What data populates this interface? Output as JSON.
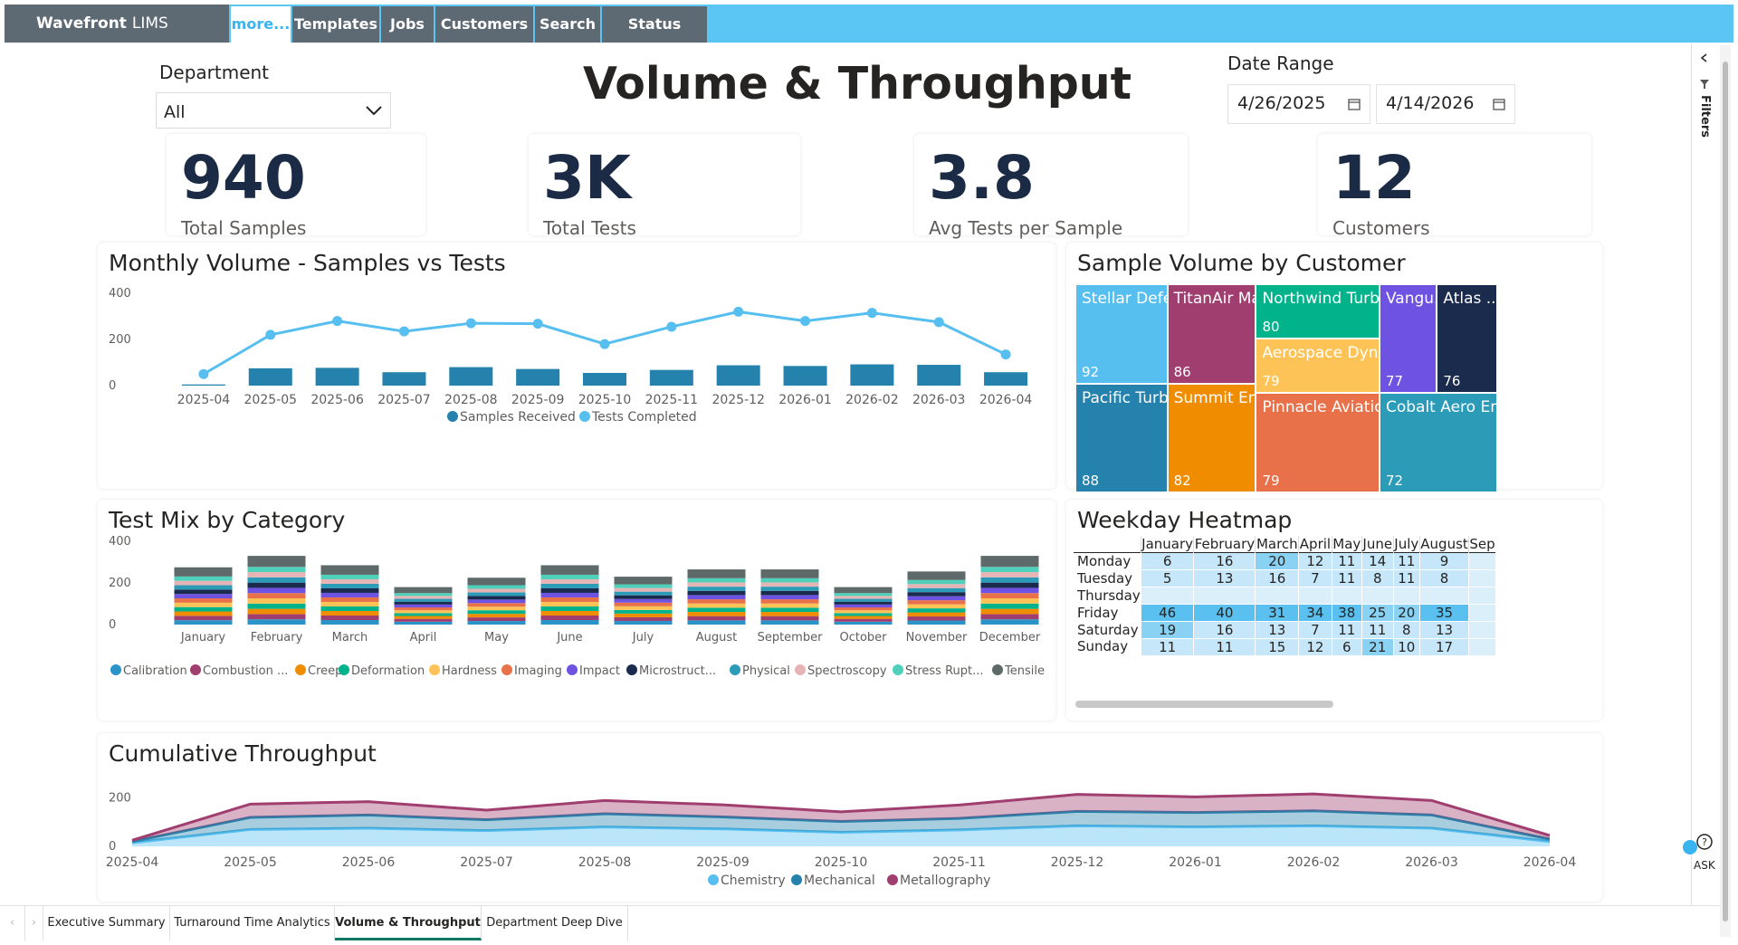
{
  "app": {
    "name": "Wavefront",
    "suffix": "LIMS"
  },
  "nav": {
    "tabs": [
      "more...",
      "Templates",
      "Jobs",
      "Customers",
      "Search",
      "Status Board"
    ],
    "active": "more..."
  },
  "filters": {
    "department_label": "Department",
    "department_value": "All",
    "date_label": "Date Range",
    "date_from": "4/26/2025",
    "date_to": "4/14/2026",
    "pane_label": "Filters"
  },
  "title": "Volume & Throughput",
  "kpis": [
    {
      "value": "940",
      "label": "Total Samples"
    },
    {
      "value": "3K",
      "label": "Total Tests"
    },
    {
      "value": "3.8",
      "label": "Avg Tests per Sample"
    },
    {
      "value": "12",
      "label": "Customers"
    }
  ],
  "colors": {
    "nav": "#5bc6f4",
    "navtab": "#5e6a73",
    "samples": "#2482ad",
    "tests": "#56bff0",
    "active_tab_underline": "#117865"
  },
  "monthly": {
    "title": "Monthly Volume - Samples vs Tests",
    "chart_data": {
      "type": "bar",
      "categories": [
        "2025-04",
        "2025-05",
        "2025-06",
        "2025-07",
        "2025-08",
        "2025-09",
        "2025-10",
        "2025-11",
        "2025-12",
        "2026-01",
        "2026-02",
        "2026-03",
        "2026-04"
      ],
      "series": [
        {
          "name": "Samples Received",
          "type": "bar",
          "values": [
            5,
            75,
            77,
            58,
            80,
            72,
            55,
            68,
            88,
            85,
            92,
            90,
            58
          ]
        },
        {
          "name": "Tests Completed",
          "type": "line",
          "values": [
            50,
            220,
            280,
            235,
            270,
            268,
            180,
            255,
            320,
            280,
            315,
            275,
            135
          ]
        }
      ],
      "y_ticks": [
        0,
        200,
        400
      ],
      "ylim": [
        0,
        400
      ]
    }
  },
  "treemap": {
    "title": "Sample Volume by Customer",
    "chart_data": {
      "type": "treemap",
      "items": [
        {
          "name": "Stellar Defen...",
          "value": 92,
          "color": "#56bff0"
        },
        {
          "name": "Pacific Turbi...",
          "value": 88,
          "color": "#2482ad"
        },
        {
          "name": "TitanAir Ma...",
          "value": 86,
          "color": "#a03e6f"
        },
        {
          "name": "Summit En...",
          "value": 82,
          "color": "#f08c00"
        },
        {
          "name": "Northwind Turbin...",
          "value": 80,
          "color": "#00b38a"
        },
        {
          "name": "Aerospace Dynam...",
          "value": 79,
          "color": "#fec356"
        },
        {
          "name": "Pinnacle Aviation",
          "value": 79,
          "color": "#e8714a"
        },
        {
          "name": "Vangu...",
          "value": 77,
          "color": "#6e53e3"
        },
        {
          "name": "Atlas ...",
          "value": 76,
          "color": "#1b2b4d"
        },
        {
          "name": "Cobalt Aero Engi...",
          "value": 72,
          "color": "#2b9bb8"
        }
      ]
    }
  },
  "testmix": {
    "title": "Test Mix by Category",
    "chart_data": {
      "type": "bar",
      "stacked": true,
      "categories": [
        "January",
        "February",
        "March",
        "April",
        "May",
        "June",
        "July",
        "August",
        "September",
        "October",
        "November",
        "December"
      ],
      "totals": [
        275,
        330,
        285,
        180,
        225,
        285,
        230,
        265,
        265,
        180,
        255,
        330
      ],
      "y_ticks": [
        0,
        200,
        400
      ],
      "ylim": [
        0,
        400
      ],
      "series": [
        {
          "name": "Calibration",
          "color": "#2a93c8"
        },
        {
          "name": "Combustion ...",
          "color": "#a03e6f"
        },
        {
          "name": "Creep",
          "color": "#f08c00"
        },
        {
          "name": "Deformation",
          "color": "#00b38a"
        },
        {
          "name": "Hardness",
          "color": "#fec356"
        },
        {
          "name": "Imaging",
          "color": "#e8714a"
        },
        {
          "name": "Impact",
          "color": "#6e53e3"
        },
        {
          "name": "Microstruct...",
          "color": "#1b2b4d"
        },
        {
          "name": "Physical",
          "color": "#2b9bb8"
        },
        {
          "name": "Spectroscopy",
          "color": "#e6b4b4"
        },
        {
          "name": "Stress Rupt...",
          "color": "#4fd0bb"
        },
        {
          "name": "Tensile",
          "color": "#5e6a69"
        }
      ]
    }
  },
  "heatmap": {
    "title": "Weekday Heatmap",
    "columns": [
      "January",
      "February",
      "March",
      "April",
      "May",
      "June",
      "July",
      "August",
      "Sep"
    ],
    "rows": [
      {
        "day": "Monday",
        "values": [
          "6",
          "16",
          "20",
          "12",
          "11",
          "14",
          "11",
          "9",
          ""
        ]
      },
      {
        "day": "Tuesday",
        "values": [
          "5",
          "13",
          "16",
          "7",
          "11",
          "8",
          "11",
          "8",
          ""
        ]
      },
      {
        "day": "Thursday",
        "values": [
          "",
          "",
          "",
          "",
          "",
          "",
          "",
          "",
          ""
        ]
      },
      {
        "day": "Friday",
        "values": [
          "46",
          "40",
          "31",
          "34",
          "38",
          "25",
          "20",
          "35",
          ""
        ]
      },
      {
        "day": "Saturday",
        "values": [
          "19",
          "16",
          "13",
          "7",
          "11",
          "11",
          "8",
          "13",
          ""
        ]
      },
      {
        "day": "Sunday",
        "values": [
          "11",
          "11",
          "15",
          "12",
          "6",
          "21",
          "10",
          "17",
          ""
        ]
      }
    ]
  },
  "cumulative": {
    "title": "Cumulative Throughput",
    "chart_data": {
      "type": "area",
      "stacked": true,
      "categories": [
        "2025-04",
        "2025-05",
        "2025-06",
        "2025-07",
        "2025-08",
        "2025-09",
        "2025-10",
        "2025-11",
        "2025-12",
        "2026-01",
        "2026-02",
        "2026-03",
        "2026-04"
      ],
      "y_ticks": [
        0,
        200
      ],
      "series": [
        {
          "name": "Chemistry",
          "color": "#56bff0",
          "values": [
            15,
            70,
            75,
            65,
            80,
            72,
            58,
            68,
            85,
            80,
            85,
            75,
            20
          ]
        },
        {
          "name": "Mechanical",
          "color": "#2482ad",
          "values": [
            5,
            50,
            55,
            45,
            55,
            50,
            45,
            48,
            60,
            60,
            62,
            55,
            10
          ]
        },
        {
          "name": "Metallography",
          "color": "#a03e6f",
          "values": [
            5,
            55,
            55,
            40,
            55,
            50,
            40,
            55,
            70,
            65,
            70,
            60,
            15
          ]
        }
      ]
    }
  },
  "pages": [
    "Executive Summary",
    "Turnaround Time Analytics",
    "Volume & Throughput",
    "Department Deep Dive"
  ],
  "active_page": "Volume & Throughput",
  "ask_label": "ASK"
}
